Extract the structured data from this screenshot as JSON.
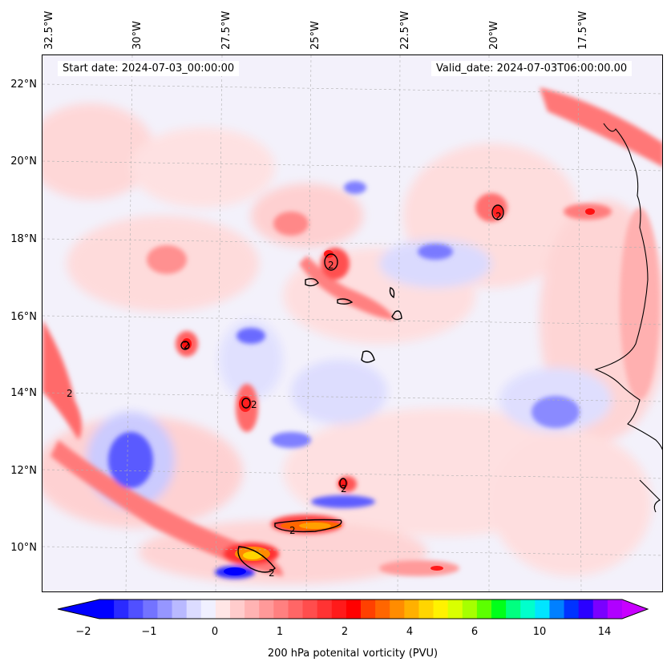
{
  "header": {
    "start_date": "Start date: 2024-07-03_00:00:00",
    "valid_date": "Valid_date: 2024-07-03T06:00:00.00"
  },
  "longitude_labels": [
    "32.5°W",
    "30°W",
    "27.5°W",
    "25°W",
    "22.5°W",
    "20°W",
    "17.5°W"
  ],
  "latitude_labels": [
    "22°N",
    "20°N",
    "18°N",
    "16°N",
    "14°N",
    "12°N",
    "10°N"
  ],
  "contour_label": "2",
  "colorbar": {
    "label": "200 hPa potenital vorticity (PVU)",
    "tick_labels": [
      "−2",
      "−1",
      "0",
      "1",
      "2",
      "4",
      "6",
      "10",
      "14"
    ],
    "colors": [
      "#0000ff",
      "#2a2aff",
      "#5050ff",
      "#7373ff",
      "#9696ff",
      "#b9b9ff",
      "#dcdcff",
      "#f0f0ff",
      "#ffe6e6",
      "#ffcccc",
      "#ffb3b3",
      "#ff9999",
      "#ff8080",
      "#ff6666",
      "#ff4d4d",
      "#ff3333",
      "#ff1a1a",
      "#ff0000",
      "#ff4000",
      "#ff6600",
      "#ff8c00",
      "#ffb000",
      "#ffd500",
      "#fff200",
      "#d9ff00",
      "#a6ff00",
      "#5cff00",
      "#00ff1a",
      "#00ff80",
      "#00ffcc",
      "#00e5ff",
      "#0080ff",
      "#0033ff",
      "#2a00ff",
      "#7a00ff",
      "#b000ff"
    ],
    "extend_low_color": "#0000ff",
    "extend_high_color": "#c800ff"
  }
}
